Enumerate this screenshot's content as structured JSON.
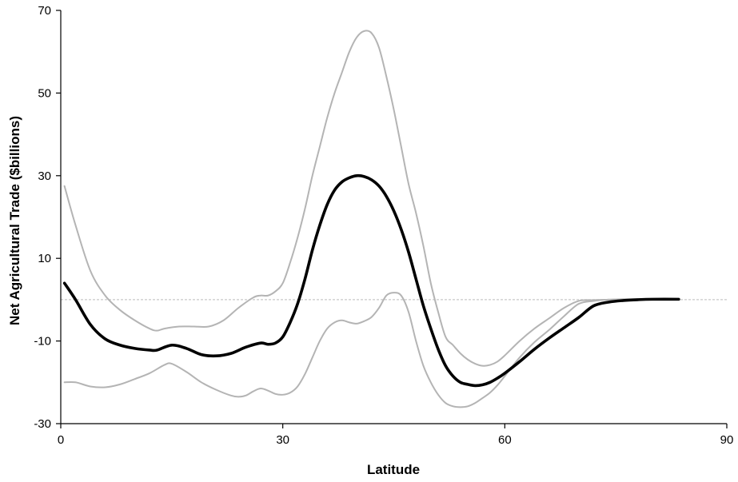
{
  "chart_data": {
    "type": "line",
    "title": "",
    "xlabel": "Latitude",
    "ylabel": "Net Agricultural Trade ($billions)",
    "xlim": [
      0,
      90
    ],
    "ylim": [
      -30,
      70
    ],
    "x_ticks": [
      0,
      30,
      60,
      90
    ],
    "y_ticks": [
      -30,
      -10,
      10,
      30,
      50,
      70
    ],
    "grid": false,
    "legend": "none",
    "reference_line": {
      "y": 0,
      "color": "#c8c8c8",
      "style": "dashed"
    },
    "series": [
      {
        "role": "central",
        "color": "#000000",
        "x": [
          0.5,
          2,
          4,
          6,
          8,
          10,
          12,
          13,
          15,
          17,
          19,
          21,
          23,
          25,
          27,
          28,
          29,
          30,
          31,
          32,
          33,
          34,
          35,
          36,
          37,
          38,
          39,
          40,
          41,
          42,
          43,
          44,
          45,
          46,
          47,
          48,
          49,
          50,
          51,
          52,
          53,
          54,
          55,
          56,
          57,
          58,
          59,
          60,
          62,
          64,
          66,
          68,
          70,
          72,
          74,
          76,
          78,
          80,
          83.5
        ],
        "y": [
          4,
          0,
          -6,
          -9.5,
          -11,
          -11.8,
          -12.2,
          -12.2,
          -11,
          -11.8,
          -13.3,
          -13.6,
          -13,
          -11.5,
          -10.5,
          -10.8,
          -10.5,
          -9,
          -5.5,
          -1,
          5,
          12,
          18,
          23,
          26.5,
          28.5,
          29.5,
          30,
          29.8,
          29,
          27.5,
          25,
          21.5,
          17,
          11.5,
          5,
          -1.5,
          -7,
          -12,
          -16,
          -18.5,
          -20,
          -20.5,
          -20.8,
          -20.6,
          -20,
          -19,
          -17.8,
          -15,
          -12,
          -9.3,
          -6.8,
          -4.3,
          -1.5,
          -0.6,
          -0.2,
          0,
          0.1,
          0.1
        ]
      },
      {
        "role": "upper",
        "color": "#b4b4b4",
        "x": [
          0.5,
          2,
          4,
          6,
          8,
          10,
          12,
          13,
          14,
          16,
          18,
          20,
          22,
          24,
          26,
          27,
          28,
          29,
          30,
          31,
          32,
          33,
          34,
          35,
          36,
          37,
          38,
          39,
          40,
          41,
          42,
          43,
          44,
          45,
          46,
          47,
          48,
          49,
          50,
          51,
          52,
          53,
          54,
          55,
          56,
          57,
          58,
          59,
          60,
          62,
          64,
          66,
          68,
          70,
          72,
          74,
          76,
          78,
          80,
          83.5
        ],
        "y": [
          27.5,
          18,
          7,
          1,
          -2.5,
          -5,
          -7,
          -7.5,
          -7,
          -6.5,
          -6.5,
          -6.5,
          -5,
          -2,
          0.5,
          1,
          1,
          2,
          4,
          9,
          15,
          22,
          30,
          37,
          44,
          50,
          55,
          60,
          63.5,
          65,
          64.5,
          61,
          54,
          46,
          37,
          28,
          21,
          13,
          4,
          -3,
          -9,
          -11,
          -13,
          -14.5,
          -15.5,
          -16,
          -15.8,
          -15,
          -13.5,
          -10,
          -7,
          -4.5,
          -2,
          -0.3,
          -0.1,
          0,
          0.1,
          0.1,
          0.1,
          0.1
        ]
      },
      {
        "role": "lower",
        "color": "#b4b4b4",
        "x": [
          0.5,
          2,
          4,
          6,
          8,
          10,
          12,
          14,
          15,
          17,
          19,
          21,
          23,
          24,
          25,
          26,
          27,
          28,
          29,
          30,
          31,
          32,
          33,
          34,
          35,
          36,
          37,
          38,
          39,
          40,
          41,
          42,
          43,
          44,
          45,
          46,
          47,
          48,
          49,
          50,
          51,
          52,
          53,
          54,
          55,
          56,
          57,
          58,
          59,
          60,
          62,
          64,
          66,
          68,
          70,
          72,
          74,
          76,
          78,
          80,
          83.5
        ],
        "y": [
          -20,
          -20,
          -21,
          -21.2,
          -20.5,
          -19.2,
          -17.8,
          -15.8,
          -15.5,
          -17.5,
          -20,
          -21.8,
          -23.2,
          -23.5,
          -23.2,
          -22.2,
          -21.5,
          -22,
          -22.8,
          -23,
          -22.5,
          -21,
          -18,
          -14,
          -10,
          -7,
          -5.5,
          -5,
          -5.5,
          -5.8,
          -5.2,
          -4.2,
          -2,
          1,
          1.7,
          1,
          -3,
          -10,
          -16,
          -20,
          -23,
          -25,
          -25.8,
          -26,
          -25.8,
          -25,
          -23.8,
          -22.5,
          -20.7,
          -18.5,
          -14,
          -10.3,
          -7.3,
          -4,
          -1,
          -0.3,
          0,
          0.1,
          0.1,
          0.1,
          0.1
        ]
      }
    ]
  }
}
